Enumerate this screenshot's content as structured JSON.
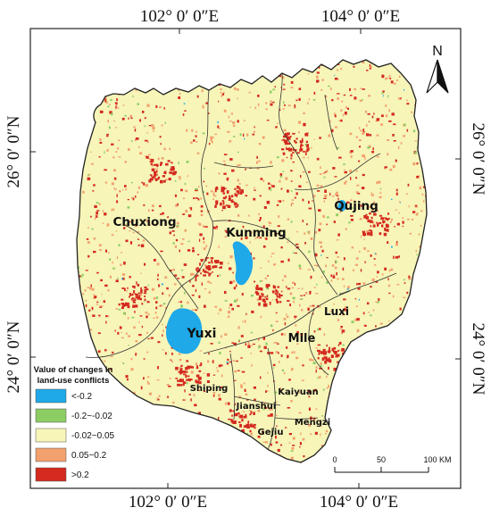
{
  "coords": {
    "top": [
      "102° 0′ 0″E",
      "104° 0′ 0″E"
    ],
    "bottom": [
      "102° 0′ 0″E",
      "104° 0′ 0″E"
    ],
    "left": [
      "26° 0′ 0″N",
      "24° 0′ 0″N"
    ],
    "right": [
      "26° 0′ 0″N",
      "24° 0′ 0″N"
    ]
  },
  "north_arrow": {
    "label": "N"
  },
  "regions": [
    {
      "id": "chuxiong",
      "label": "Chuxiong"
    },
    {
      "id": "kunming",
      "label": "Kunming"
    },
    {
      "id": "qujing",
      "label": "Qujing"
    },
    {
      "id": "yuxi",
      "label": "Yuxi"
    },
    {
      "id": "mile",
      "label": "Mile"
    },
    {
      "id": "luxi",
      "label": "Luxi"
    },
    {
      "id": "shiping",
      "label": "Shiping"
    },
    {
      "id": "kaiyuan",
      "label": "Kaiyuan"
    },
    {
      "id": "jianshui",
      "label": "Jianshui"
    },
    {
      "id": "gejiu",
      "label": "Gejiu"
    },
    {
      "id": "mengzi",
      "label": "Mengzi"
    }
  ],
  "legend": {
    "title_line1": "Value of changes in",
    "title_line2": "land-use conflicts",
    "items": [
      {
        "label": "<-0.2",
        "color": "#1fa9e8"
      },
      {
        "label": "-0.2~-0.02",
        "color": "#8ccd63"
      },
      {
        "label": "-0.02~0.05",
        "color": "#f7f5b8"
      },
      {
        "label": "0.05~0.2",
        "color": "#f2a06e"
      },
      {
        "label": ">0.2",
        "color": "#d42a1f"
      }
    ]
  },
  "scale_bar": {
    "ticks": [
      "0",
      "50",
      "100 KM"
    ]
  },
  "colors": {
    "background": "#f7f5b8",
    "high_conflict": "#d42a1f",
    "mid_conflict": "#f2a06e",
    "decrease": "#8ccd63",
    "strong_decrease": "#1fa9e8"
  }
}
